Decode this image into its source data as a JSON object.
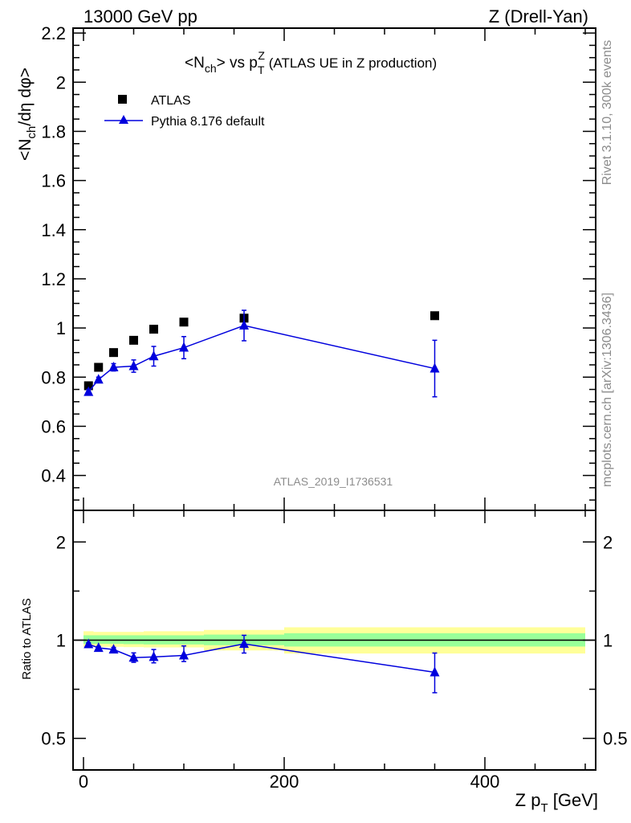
{
  "chart_data": [
    {
      "type": "scatter",
      "panel": "main",
      "header_left": "13000 GeV pp",
      "header_right": "Z (Drell-Yan)",
      "title": {
        "a": "<N",
        "b": "ch",
        "c": "> vs p",
        "d": "T",
        "e": "Z",
        "f": " (ATLAS UE in Z production)"
      },
      "ylabel": {
        "a": "<N",
        "b": "ch",
        "c": "/dη dφ>"
      },
      "xlim": [
        -10.4,
        510.4
      ],
      "ylim": [
        0.258,
        2.22
      ],
      "yticks": [
        "0.4",
        "0.6",
        "0.8",
        "1",
        "1.2",
        "1.4",
        "1.6",
        "1.8",
        "2",
        "2.2"
      ],
      "legend_position": "top-left",
      "series": [
        {
          "name": "ATLAS",
          "marker": "square",
          "color": "#000000",
          "x": [
            5,
            15,
            30,
            50,
            70,
            100,
            160,
            350
          ],
          "y": [
            0.765,
            0.84,
            0.9,
            0.95,
            0.995,
            1.024,
            1.04,
            1.05
          ]
        },
        {
          "name": "Pythia 8.176 default",
          "marker": "triangle",
          "color": "#0000dd",
          "x": [
            5,
            15,
            30,
            50,
            70,
            100,
            160,
            350
          ],
          "y": [
            0.74,
            0.79,
            0.84,
            0.845,
            0.885,
            0.92,
            1.01,
            0.835
          ],
          "yerr": [
            0.01,
            0.01,
            0.015,
            0.025,
            0.04,
            0.045,
            0.062,
            0.115
          ]
        }
      ],
      "watermark": "ATLAS_2019_I1736531",
      "side_text_top": "Rivet 3.1.10,  300k events",
      "side_text_bottom": "mcplots.cern.ch [arXiv:1306.3436]"
    },
    {
      "type": "line",
      "panel": "ratio",
      "ylabel": "Ratio to ATLAS",
      "yscale": "log",
      "ylim": [
        0.4,
        2.5
      ],
      "yticks": [
        "0.5",
        "1",
        "2"
      ],
      "xticks": [
        "0",
        "200",
        "400"
      ],
      "xlabel": {
        "a": "Z p",
        "b": "T",
        "c": " [GeV]"
      },
      "bands": {
        "edges": [
          0,
          10,
          20,
          40,
          60,
          80,
          120,
          200,
          500
        ],
        "total_up": [
          1.065,
          1.06,
          1.06,
          1.06,
          1.065,
          1.065,
          1.075,
          1.095
        ],
        "total_down": [
          0.955,
          0.955,
          0.954,
          0.952,
          0.95,
          0.95,
          0.93,
          0.91
        ],
        "stat_up": [
          1.035,
          1.035,
          1.035,
          1.035,
          1.035,
          1.035,
          1.04,
          1.05
        ],
        "stat_down": [
          0.974,
          0.974,
          0.974,
          0.972,
          0.97,
          0.97,
          0.965,
          0.956
        ],
        "total_color": "#ffff99",
        "stat_color": "#99ff99"
      },
      "series": [
        {
          "name": "Pythia 8.176 default / ATLAS",
          "color": "#0000dd",
          "x": [
            5,
            15,
            30,
            50,
            70,
            100,
            160,
            350
          ],
          "y": [
            0.972,
            0.947,
            0.936,
            0.884,
            0.888,
            0.898,
            0.974,
            0.797
          ],
          "ylo": [
            0.962,
            0.937,
            0.922,
            0.855,
            0.852,
            0.86,
            0.913,
            0.69
          ],
          "yhi": [
            0.982,
            0.957,
            0.95,
            0.914,
            0.936,
            0.96,
            1.035,
            0.913
          ]
        }
      ]
    }
  ]
}
